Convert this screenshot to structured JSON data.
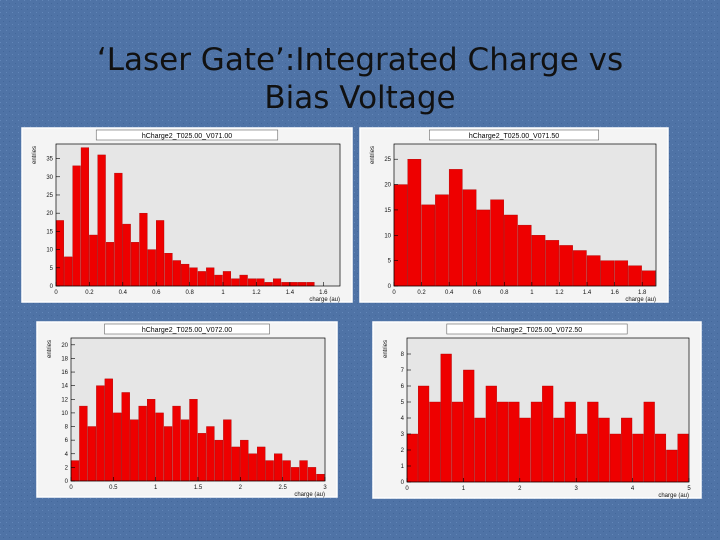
{
  "slide_title": "‘Laser Gate’:Integrated Charge vs Bias Voltage",
  "chart_data": [
    {
      "type": "histogram",
      "title": "hCharge2_T025.00_V071.00",
      "x_label": "charge (au)",
      "y_label": "entries",
      "color": "#ee0000",
      "bins": [
        0,
        0.05,
        0.1,
        0.15,
        0.2,
        0.25,
        0.3,
        0.35,
        0.4,
        0.45,
        0.5,
        0.55,
        0.6,
        0.65,
        0.7,
        0.75,
        0.8,
        0.85,
        0.9,
        0.95,
        1,
        1.05,
        1.1,
        1.15,
        1.2,
        1.25,
        1.3,
        1.35,
        1.4,
        1.45,
        1.5,
        1.55,
        1.6,
        1.65,
        1.7
      ],
      "values": [
        18,
        8,
        33,
        38,
        14,
        36,
        12,
        31,
        17,
        12,
        20,
        10,
        18,
        9,
        7,
        6,
        5,
        4,
        5,
        3,
        4,
        2,
        3,
        2,
        2,
        1,
        2,
        1,
        1,
        1,
        1,
        0,
        0,
        0
      ],
      "xlim": [
        0,
        1.7
      ],
      "xticks": [
        0,
        0.2,
        0.4,
        0.6,
        0.8,
        1,
        1.2,
        1.4,
        1.6
      ],
      "ylim": [
        0,
        39
      ],
      "yticks": [
        0,
        5,
        10,
        15,
        20,
        25,
        30,
        35
      ]
    },
    {
      "type": "histogram",
      "title": "hCharge2_T025.00_V071.50",
      "x_label": "charge (au)",
      "y_label": "entries",
      "color": "#ee0000",
      "bins": [
        0,
        0.1,
        0.2,
        0.3,
        0.4,
        0.5,
        0.6,
        0.7,
        0.8,
        0.9,
        1,
        1.1,
        1.2,
        1.3,
        1.4,
        1.5,
        1.6,
        1.7,
        1.8,
        1.9
      ],
      "values": [
        20,
        25,
        16,
        18,
        23,
        19,
        15,
        17,
        14,
        12,
        10,
        9,
        8,
        7,
        6,
        5,
        5,
        4,
        3
      ],
      "xlim": [
        0,
        1.9
      ],
      "xticks": [
        0,
        0.2,
        0.4,
        0.6,
        0.8,
        1,
        1.2,
        1.4,
        1.6,
        1.8
      ],
      "ylim": [
        0,
        28
      ],
      "yticks": [
        0,
        5,
        10,
        15,
        20,
        25
      ]
    },
    {
      "type": "histogram",
      "title": "hCharge2_T025.00_V072.00",
      "x_label": "charge (au)",
      "y_label": "entries",
      "color": "#ee0000",
      "bins": [
        0,
        0.1,
        0.2,
        0.3,
        0.4,
        0.5,
        0.6,
        0.7,
        0.8,
        0.9,
        1,
        1.1,
        1.2,
        1.3,
        1.4,
        1.5,
        1.6,
        1.7,
        1.8,
        1.9,
        2,
        2.1,
        2.2,
        2.3,
        2.4,
        2.5,
        2.6,
        2.7,
        2.8,
        2.9,
        3
      ],
      "values": [
        3,
        11,
        8,
        14,
        15,
        10,
        13,
        9,
        11,
        12,
        10,
        8,
        11,
        9,
        12,
        7,
        8,
        6,
        9,
        5,
        6,
        4,
        5,
        3,
        4,
        3,
        2,
        3,
        2,
        1
      ],
      "xlim": [
        0,
        3
      ],
      "xticks": [
        0,
        0.5,
        1,
        1.5,
        2,
        2.5,
        3
      ],
      "ylim": [
        0,
        21
      ],
      "yticks": [
        0,
        2,
        4,
        6,
        8,
        10,
        12,
        14,
        16,
        18,
        20
      ]
    },
    {
      "type": "histogram",
      "title": "hCharge2_T025.00_V072.50",
      "x_label": "charge (au)",
      "y_label": "entries",
      "color": "#ee0000",
      "bins": [
        0,
        0.2,
        0.4,
        0.6,
        0.8,
        1,
        1.2,
        1.4,
        1.6,
        1.8,
        2,
        2.2,
        2.4,
        2.6,
        2.8,
        3,
        3.2,
        3.4,
        3.6,
        3.8,
        4,
        4.2,
        4.4,
        4.6,
        4.8,
        5
      ],
      "values": [
        3,
        6,
        5,
        8,
        5,
        7,
        4,
        6,
        5,
        5,
        4,
        5,
        6,
        4,
        5,
        3,
        5,
        4,
        3,
        4,
        3,
        5,
        3,
        2,
        3
      ],
      "xlim": [
        0,
        5
      ],
      "xticks": [
        0,
        1,
        2,
        3,
        4,
        5
      ],
      "ylim": [
        0,
        9
      ],
      "yticks": [
        0,
        1,
        2,
        3,
        4,
        5,
        6,
        7,
        8
      ]
    }
  ]
}
